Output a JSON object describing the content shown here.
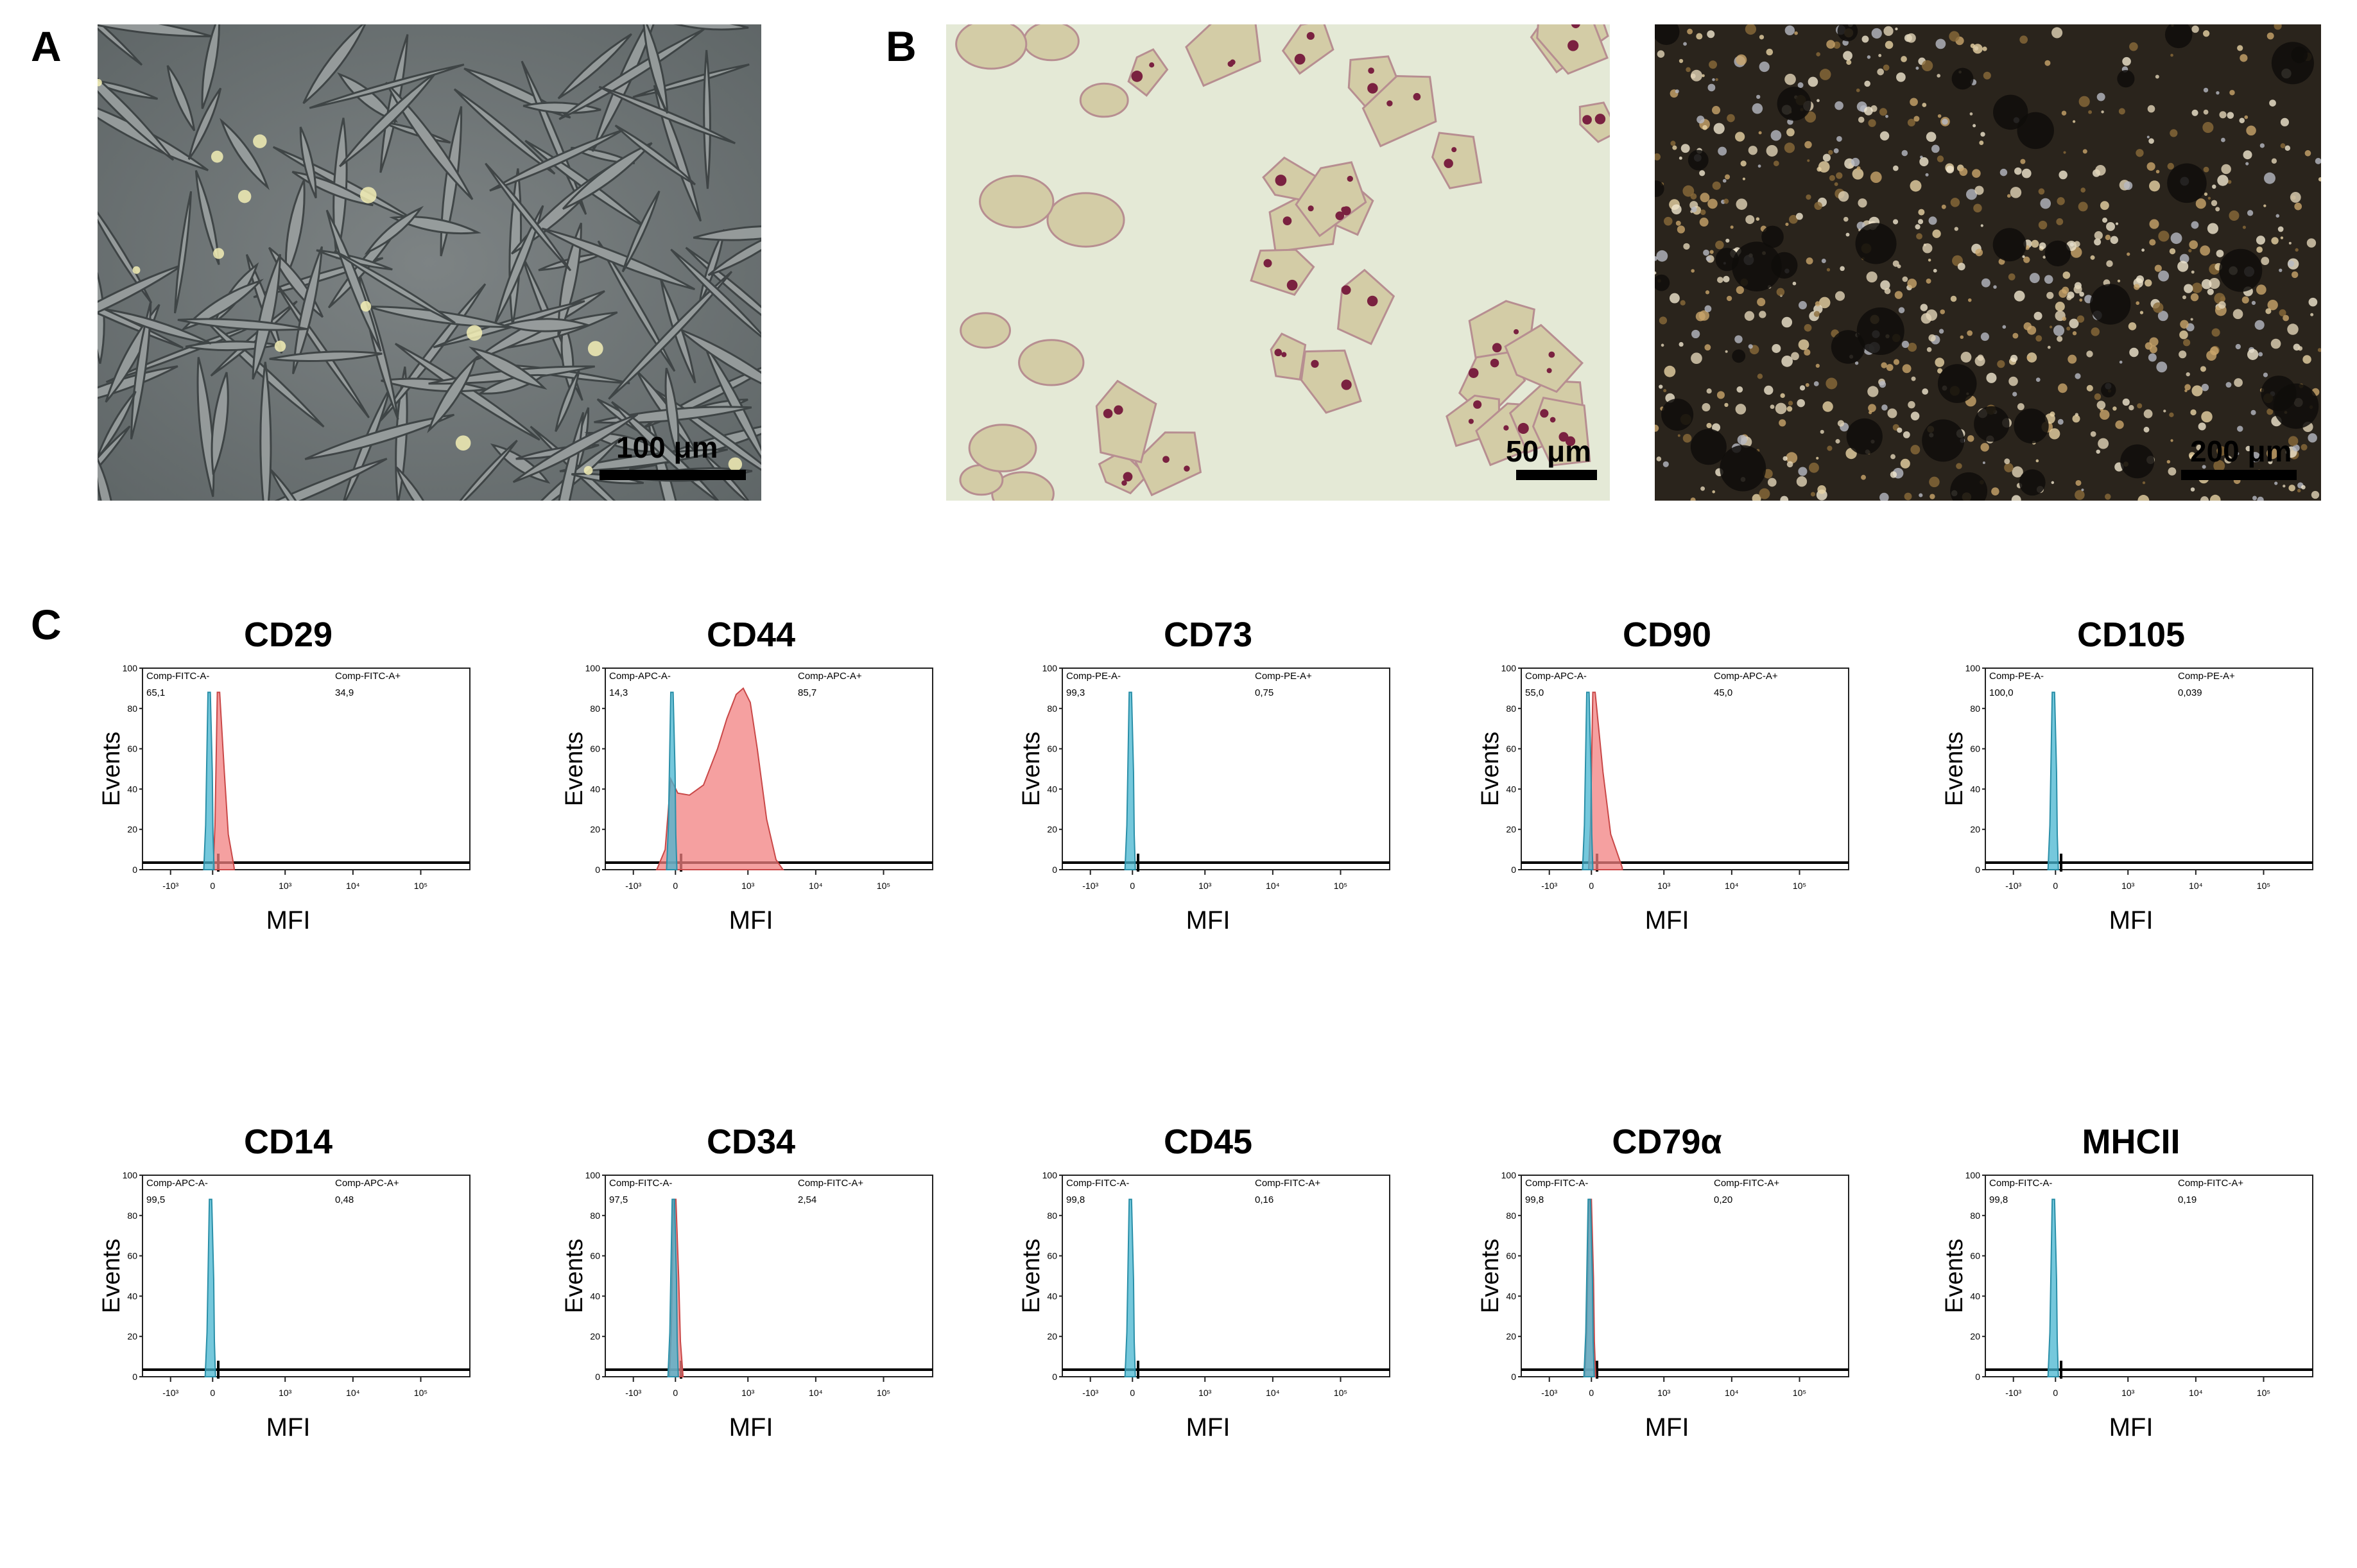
{
  "figure": {
    "panel_labels": {
      "a": "A",
      "b": "B",
      "c": "C"
    },
    "scale_bars": {
      "a": "100 μm",
      "b1": "50 μm",
      "b2": "200 μm"
    },
    "images": {
      "a": "phase-contrast micrograph of spindle-shaped adherent cells",
      "b1": "oil red O stained adipogenic cells",
      "b2": "dark mineralized osteogenic matrix"
    }
  },
  "chart_data": [
    {
      "type": "area",
      "title": "CD29",
      "xlabel": "MFI",
      "ylabel": "Events",
      "yticks": [
        "0",
        "20",
        "40",
        "60",
        "80",
        "100"
      ],
      "xticks": [
        "-10³",
        "0",
        "10³",
        "10⁴",
        "10⁵"
      ],
      "gate_neg": {
        "label": "Comp-FITC-A-",
        "value": "65,1"
      },
      "gate_pos": {
        "label": "Comp-FITC-A+",
        "value": "34,9"
      },
      "series": [
        {
          "color": "#f28080",
          "peak_x": 0.12,
          "peak_y": 88,
          "tail": 0.28
        },
        {
          "color": "#47b5d0",
          "peak_x": -0.08,
          "peak_y": 88,
          "tail": 0.05
        }
      ]
    },
    {
      "type": "area",
      "title": "CD44",
      "xlabel": "MFI",
      "ylabel": "Events",
      "yticks": [
        "0",
        "20",
        "40",
        "60",
        "80",
        "100"
      ],
      "xticks": [
        "-10³",
        "0",
        "10³",
        "10⁴",
        "10⁵"
      ],
      "gate_neg": {
        "label": "Comp-APC-A-",
        "value": "14,3"
      },
      "gate_pos": {
        "label": "Comp-APC-A+",
        "value": "85,7"
      },
      "series": [
        {
          "color": "#f28080",
          "profile": [
            [
              -0.3,
              0
            ],
            [
              -0.12,
              10
            ],
            [
              0,
              45
            ],
            [
              0.15,
              38
            ],
            [
              0.4,
              37
            ],
            [
              0.7,
              42
            ],
            [
              1.0,
              60
            ],
            [
              1.2,
              75
            ],
            [
              1.4,
              87
            ],
            [
              1.55,
              90
            ],
            [
              1.7,
              83
            ],
            [
              1.85,
              60
            ],
            [
              2.05,
              25
            ],
            [
              2.25,
              5
            ],
            [
              2.4,
              0
            ]
          ]
        },
        {
          "color": "#47b5d0",
          "peak_x": -0.08,
          "peak_y": 88,
          "tail": 0.05
        }
      ]
    },
    {
      "type": "area",
      "title": "CD73",
      "xlabel": "MFI",
      "ylabel": "Events",
      "yticks": [
        "0",
        "20",
        "40",
        "60",
        "80",
        "100"
      ],
      "xticks": [
        "-10³",
        "0",
        "10³",
        "10⁴",
        "10⁵"
      ],
      "gate_neg": {
        "label": "Comp-PE-A-",
        "value": "99,3"
      },
      "gate_pos": {
        "label": "Comp-PE-A+",
        "value": "0,75"
      },
      "series": [
        {
          "color": "#47b5d0",
          "peak_x": -0.05,
          "peak_y": 88,
          "tail": 0.05
        }
      ]
    },
    {
      "type": "area",
      "title": "CD90",
      "xlabel": "MFI",
      "ylabel": "Events",
      "yticks": [
        "0",
        "20",
        "40",
        "60",
        "80",
        "100"
      ],
      "xticks": [
        "-10³",
        "0",
        "10³",
        "10⁴",
        "10⁵"
      ],
      "gate_neg": {
        "label": "Comp-APC-A-",
        "value": "55,0"
      },
      "gate_pos": {
        "label": "Comp-APC-A+",
        "value": "45,0"
      },
      "series": [
        {
          "color": "#f28080",
          "peak_x": 0.05,
          "peak_y": 88,
          "tail": 0.55
        },
        {
          "color": "#47b5d0",
          "peak_x": -0.08,
          "peak_y": 88,
          "tail": 0.05
        }
      ]
    },
    {
      "type": "area",
      "title": "CD105",
      "xlabel": "MFI",
      "ylabel": "Events",
      "yticks": [
        "0",
        "20",
        "40",
        "60",
        "80",
        "100"
      ],
      "xticks": [
        "-10³",
        "0",
        "10³",
        "10⁴",
        "10⁵"
      ],
      "gate_neg": {
        "label": "Comp-PE-A-",
        "value": "100,0"
      },
      "gate_pos": {
        "label": "Comp-PE-A+",
        "value": "0,039"
      },
      "series": [
        {
          "color": "#47b5d0",
          "peak_x": -0.05,
          "peak_y": 88,
          "tail": 0.05
        }
      ]
    },
    {
      "type": "area",
      "title": "CD14",
      "xlabel": "MFI",
      "ylabel": "Events",
      "yticks": [
        "0",
        "20",
        "40",
        "60",
        "80",
        "100"
      ],
      "xticks": [
        "-10³",
        "0",
        "10³",
        "10⁴",
        "10⁵"
      ],
      "gate_neg": {
        "label": "Comp-APC-A-",
        "value": "99,5"
      },
      "gate_pos": {
        "label": "Comp-APC-A+",
        "value": "0,48"
      },
      "series": [
        {
          "color": "#47b5d0",
          "peak_x": -0.05,
          "peak_y": 88,
          "tail": 0.05
        }
      ]
    },
    {
      "type": "area",
      "title": "CD34",
      "xlabel": "MFI",
      "ylabel": "Events",
      "yticks": [
        "0",
        "20",
        "40",
        "60",
        "80",
        "100"
      ],
      "xticks": [
        "-10³",
        "0",
        "10³",
        "10⁴",
        "10⁵"
      ],
      "gate_neg": {
        "label": "Comp-FITC-A-",
        "value": "97,5"
      },
      "gate_pos": {
        "label": "Comp-FITC-A+",
        "value": "2,54"
      },
      "series": [
        {
          "color": "#f28080",
          "peak_x": -0.02,
          "peak_y": 88,
          "tail": 0.12
        },
        {
          "color": "#47b5d0",
          "peak_x": -0.05,
          "peak_y": 88,
          "tail": 0.05
        }
      ]
    },
    {
      "type": "area",
      "title": "CD45",
      "xlabel": "MFI",
      "ylabel": "Events",
      "yticks": [
        "0",
        "20",
        "40",
        "60",
        "80",
        "100"
      ],
      "xticks": [
        "-10³",
        "0",
        "10³",
        "10⁴",
        "10⁵"
      ],
      "gate_neg": {
        "label": "Comp-FITC-A-",
        "value": "99,8"
      },
      "gate_pos": {
        "label": "Comp-FITC-A+",
        "value": "0,16"
      },
      "series": [
        {
          "color": "#47b5d0",
          "peak_x": -0.05,
          "peak_y": 88,
          "tail": 0.05
        }
      ]
    },
    {
      "type": "area",
      "title": "CD79α",
      "xlabel": "MFI",
      "ylabel": "Events",
      "yticks": [
        "0",
        "20",
        "40",
        "60",
        "80",
        "100"
      ],
      "xticks": [
        "-10³",
        "0",
        "10³",
        "10⁴",
        "10⁵"
      ],
      "gate_neg": {
        "label": "Comp-FITC-A-",
        "value": "99,8"
      },
      "gate_pos": {
        "label": "Comp-FITC-A+",
        "value": "0,20"
      },
      "series": [
        {
          "color": "#f28080",
          "peak_x": -0.03,
          "peak_y": 88,
          "tail": 0.06
        },
        {
          "color": "#47b5d0",
          "peak_x": -0.05,
          "peak_y": 88,
          "tail": 0.05
        }
      ]
    },
    {
      "type": "area",
      "title": "MHCII",
      "xlabel": "MFI",
      "ylabel": "Events",
      "yticks": [
        "0",
        "20",
        "40",
        "60",
        "80",
        "100"
      ],
      "xticks": [
        "-10³",
        "0",
        "10³",
        "10⁴",
        "10⁵"
      ],
      "gate_neg": {
        "label": "Comp-FITC-A-",
        "value": "99,8"
      },
      "gate_pos": {
        "label": "Comp-FITC-A+",
        "value": "0,19"
      },
      "series": [
        {
          "color": "#47b5d0",
          "peak_x": -0.05,
          "peak_y": 88,
          "tail": 0.05
        }
      ]
    }
  ]
}
